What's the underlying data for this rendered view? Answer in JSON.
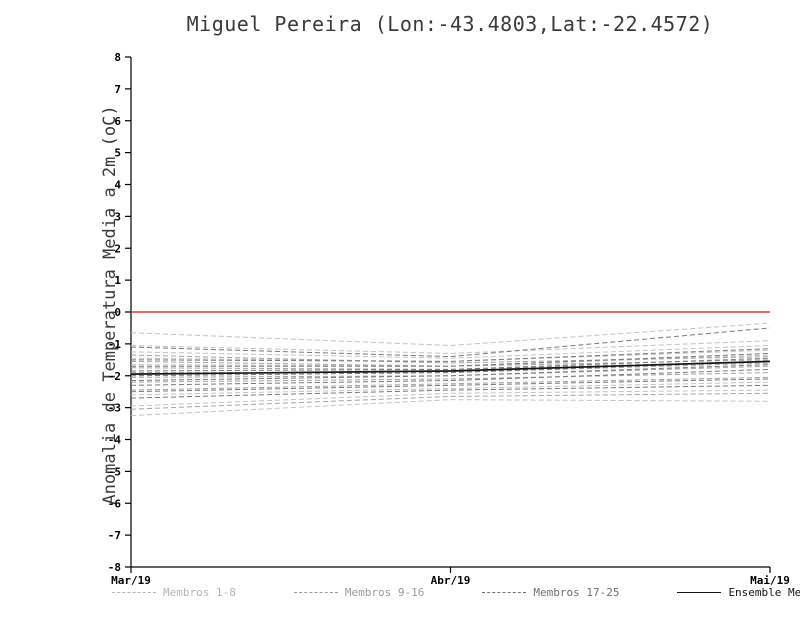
{
  "chart_data": {
    "type": "line",
    "title": "Miguel Pereira (Lon:-43.4803,Lat:-22.4572)",
    "ylabel": "Anomalia de Temperatura Media a 2m (oC)",
    "xlabel": "",
    "x_ticks": [
      "Mar/19",
      "Abr/19",
      "Mai/19"
    ],
    "ylim": [
      -8,
      8
    ],
    "y_tick_step": 1,
    "grid": false,
    "zero_line": {
      "value": 0,
      "color": "#e0382e"
    },
    "groups": [
      {
        "name": "Membros 1-8",
        "color": "#c2c2c2",
        "dash": true,
        "members": [
          [
            -0.65,
            -1.05,
            -0.35
          ],
          [
            -1.05,
            -1.3,
            -0.9
          ],
          [
            -1.25,
            -1.45,
            -1.05
          ],
          [
            -1.45,
            -1.55,
            -1.2
          ],
          [
            -1.65,
            -1.7,
            -1.35
          ],
          [
            -2.6,
            -2.4,
            -2.2
          ],
          [
            -2.95,
            -2.55,
            -2.45
          ],
          [
            -3.25,
            -2.75,
            -2.8
          ]
        ]
      },
      {
        "name": "Membros 9-16",
        "color": "#a3a3a3",
        "dash": true,
        "members": [
          [
            -1.35,
            -1.6,
            -1.4
          ],
          [
            -1.55,
            -1.7,
            -1.5
          ],
          [
            -1.75,
            -1.8,
            -1.55
          ],
          [
            -1.9,
            -1.9,
            -1.6
          ],
          [
            -2.05,
            -2.0,
            -1.7
          ],
          [
            -2.2,
            -2.1,
            -1.9
          ],
          [
            -2.45,
            -2.25,
            -2.05
          ],
          [
            -3.05,
            -2.65,
            -2.55
          ]
        ]
      },
      {
        "name": "Membros 17-25",
        "color": "#787878",
        "dash": true,
        "members": [
          [
            -1.1,
            -1.4,
            -0.5
          ],
          [
            -1.5,
            -1.55,
            -1.15
          ],
          [
            -1.7,
            -1.7,
            -1.3
          ],
          [
            -1.85,
            -1.8,
            -1.45
          ],
          [
            -2.0,
            -1.9,
            -1.55
          ],
          [
            -2.15,
            -2.0,
            -1.65
          ],
          [
            -2.3,
            -2.15,
            -1.8
          ],
          [
            -2.5,
            -2.3,
            -2.1
          ],
          [
            -2.7,
            -2.45,
            -2.3
          ]
        ]
      }
    ],
    "ensemble_mean": {
      "name": "Ensemble Mean",
      "color": "#151515",
      "values": [
        -1.95,
        -1.85,
        -1.55
      ]
    },
    "legend": [
      {
        "label": "Membros 1-8",
        "color": "#b5b5b5",
        "dash": true
      },
      {
        "label": "Membros 9-16",
        "color": "#9a9a9a",
        "dash": true
      },
      {
        "label": "Membros 17-25",
        "color": "#707070",
        "dash": true
      },
      {
        "label": "Ensemble Mean",
        "color": "#151515",
        "dash": false
      }
    ]
  }
}
